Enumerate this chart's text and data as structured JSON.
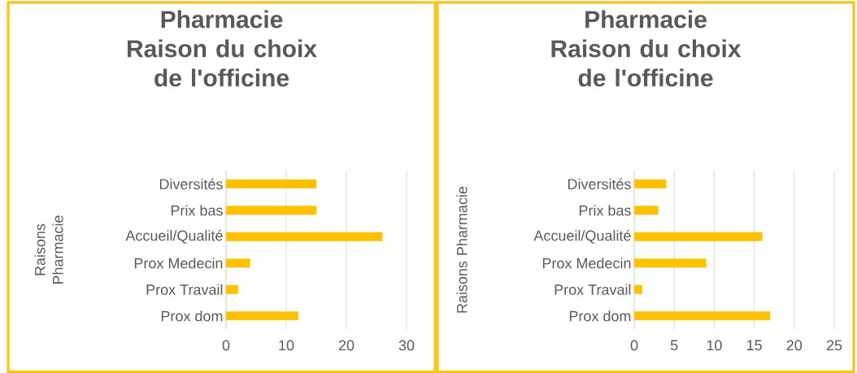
{
  "chart_data": [
    {
      "type": "bar",
      "orientation": "horizontal",
      "title": "Pharmacie Raison du choix de l'officine",
      "ylabel": "Raisons Pharmacie",
      "categories": [
        "Diversités",
        "Prix bas",
        "Accueil/Qualité",
        "Prox Medecin",
        "Prox Travail",
        "Prox dom"
      ],
      "values": [
        15,
        15,
        26,
        4,
        2,
        12
      ],
      "color": "#ffc000",
      "xlim": [
        0,
        30
      ],
      "xticks": [
        0,
        10,
        20,
        30
      ],
      "grid": "x"
    },
    {
      "type": "bar",
      "orientation": "horizontal",
      "title": "Pharmacie Raison du choix de l'officine",
      "ylabel": "Raisons Pharmacie",
      "categories": [
        "Diversités",
        "Prix bas",
        "Accueil/Qualité",
        "Prox Medecin",
        "Prox Travail",
        "Prox dom"
      ],
      "values": [
        4,
        3,
        16,
        9,
        1,
        17
      ],
      "color": "#ffc000",
      "xlim": [
        0,
        25
      ],
      "xticks": [
        0,
        5,
        10,
        15,
        20,
        25
      ],
      "grid": "x"
    }
  ]
}
